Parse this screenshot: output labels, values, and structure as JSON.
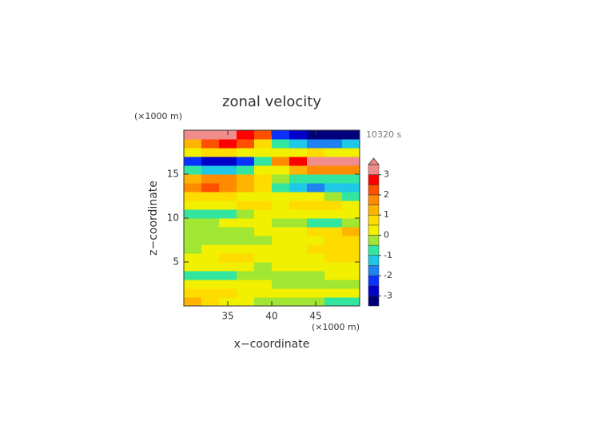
{
  "chart_data": {
    "type": "contour",
    "title": "zonal velocity",
    "x_label": "x−coordinate",
    "y_label": "z−coordinate",
    "x_unit": "(×1000 m)",
    "y_unit": "(×1000 m)",
    "annotation": "10320 s",
    "xlim": [
      30,
      50
    ],
    "ylim": [
      0,
      20
    ],
    "xticks": [
      35,
      40,
      45
    ],
    "yticks": [
      5,
      10,
      15
    ],
    "x": [
      31,
      33,
      35,
      37,
      39,
      41,
      43,
      45,
      47,
      49
    ],
    "y": [
      0.5,
      1.5,
      2.5,
      3.5,
      4.5,
      5.5,
      6.5,
      7.5,
      8.5,
      9.5,
      10.5,
      11.5,
      12.5,
      13.5,
      14.5,
      15.5,
      16.5,
      17.5,
      18.5,
      19.5
    ],
    "z": [
      [
        1,
        0.8,
        0.4,
        0.2,
        -0.3,
        -0.5,
        -0.5,
        -0.4,
        -0.6,
        -0.7
      ],
      [
        0.6,
        0.7,
        0.5,
        0.3,
        0.1,
        0.2,
        0.3,
        0.3,
        0.2,
        0.2
      ],
      [
        0.3,
        0.2,
        0.3,
        0.2,
        0.1,
        -0.3,
        -0.4,
        -0.3,
        -0.2,
        -0.1
      ],
      [
        -0.6,
        -0.7,
        -0.6,
        -0.4,
        -0.2,
        -0.2,
        -0.3,
        -0.2,
        0.2,
        0.3
      ],
      [
        0.2,
        0.3,
        0.2,
        0.1,
        -0.2,
        0.3,
        0.2,
        0.3,
        0.3,
        0.4
      ],
      [
        0.3,
        0.4,
        0.5,
        0.5,
        0.3,
        0.3,
        0.2,
        0.3,
        0.5,
        0.7
      ],
      [
        -0.2,
        0.2,
        0.4,
        0.3,
        0.2,
        0.2,
        0.3,
        0.5,
        0.6,
        0.8
      ],
      [
        -0.3,
        -0.2,
        -0.3,
        -0.2,
        -0.1,
        0.3,
        0.3,
        0.4,
        0.6,
        0.8
      ],
      [
        -0.3,
        -0.4,
        -0.2,
        -0.1,
        0.2,
        0.2,
        0.4,
        0.6,
        0.8,
        1
      ],
      [
        -0.3,
        -0.2,
        0.2,
        0.4,
        0.3,
        -0.2,
        -0.5,
        -0.8,
        -0.6,
        -0.3
      ],
      [
        -0.6,
        -0.8,
        -0.6,
        -0.3,
        0.2,
        0.3,
        0.3,
        0.4,
        0.2,
        0.1
      ],
      [
        0.4,
        0.2,
        0.3,
        0.5,
        0.8,
        0.4,
        0.8,
        0.9,
        0.6,
        0.4
      ],
      [
        0.6,
        0.8,
        0.5,
        0.2,
        0.3,
        0.3,
        0.2,
        0.1,
        -0.4,
        -0.8
      ],
      [
        1.5,
        2,
        1.8,
        1,
        0.5,
        -0.6,
        -1.2,
        -1.8,
        -1.5,
        -1.2
      ],
      [
        1,
        1.5,
        1.8,
        1.2,
        0.6,
        -0.3,
        -0.6,
        -1,
        -1,
        -0.8
      ],
      [
        -0.8,
        -1.2,
        -1.2,
        -0.8,
        0.2,
        0.4,
        1,
        1.5,
        1.5,
        1.5
      ],
      [
        -2.2,
        -3,
        -3,
        -2.5,
        -1,
        1.5,
        2.5,
        3,
        3,
        3
      ],
      [
        0.3,
        0.5,
        0.6,
        0.4,
        0.2,
        0.2,
        0.4,
        0.5,
        0.4,
        0.3
      ],
      [
        1.2,
        2.2,
        2.6,
        2,
        0.8,
        -0.8,
        -1.5,
        -1.8,
        -1.6,
        -1.2
      ],
      [
        3,
        3,
        3,
        2.8,
        2.2,
        -2.5,
        -3,
        -3.2,
        -3.2,
        -3.2
      ]
    ],
    "levels": [
      -3.5,
      -3,
      -2.5,
      -2,
      -1.5,
      -1,
      -0.5,
      0,
      0.5,
      1,
      1.5,
      2,
      2.5,
      3,
      3.5
    ],
    "colors": [
      "#00007a",
      "#0000c8",
      "#0a32ff",
      "#1e82f0",
      "#1ec8e6",
      "#32e6a0",
      "#a0e632",
      "#f0f000",
      "#ffdc00",
      "#ffb400",
      "#ff8c00",
      "#ff5000",
      "#ff0000",
      "#f08c8c"
    ],
    "colorbar_ticks": [
      -3,
      -2,
      -1,
      0,
      1,
      2,
      3
    ]
  }
}
